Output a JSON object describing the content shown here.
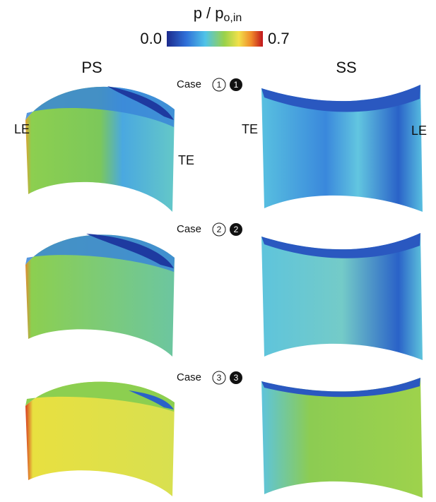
{
  "colorbar": {
    "label": "p / p",
    "label_sub": "o,in",
    "min": "0.0",
    "max": "0.7"
  },
  "columns": [
    "PS",
    "SS"
  ],
  "cases": [
    {
      "label": "Case",
      "open_num": "1",
      "filled_num": "1",
      "ps_edges": [
        "LE",
        "TE"
      ],
      "ss_edges": [
        "TE",
        "LE"
      ]
    },
    {
      "label": "Case",
      "open_num": "2",
      "filled_num": "2"
    },
    {
      "label": "Case",
      "open_num": "3",
      "filled_num": "3"
    }
  ]
}
